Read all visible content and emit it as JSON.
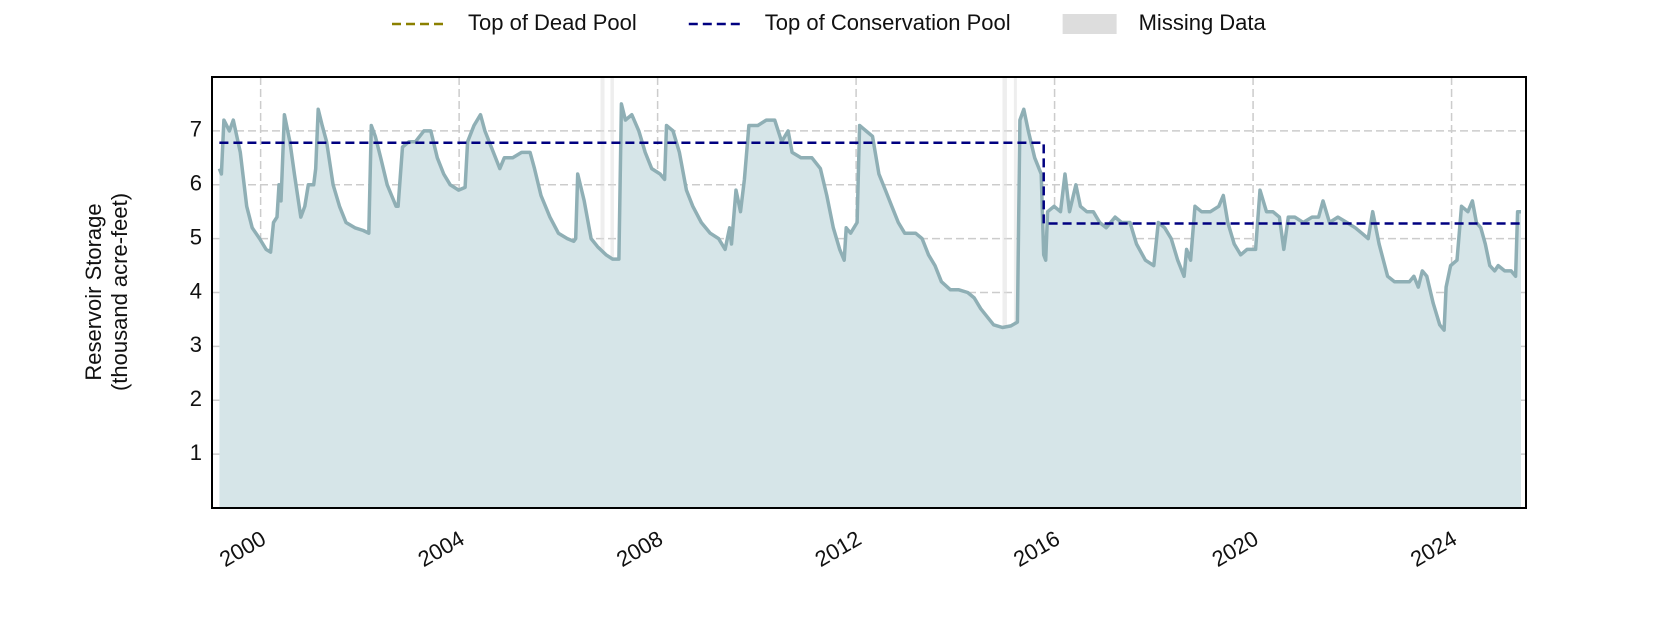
{
  "chart_data": {
    "type": "line",
    "y_label": "Reservoir Storage\n(thousand acre-feet)",
    "xlim": [
      1999.02,
      2025.5
    ],
    "ylim": [
      0,
      8
    ],
    "xticks": [
      2000,
      2004,
      2008,
      2012,
      2016,
      2020,
      2024
    ],
    "yticks": [
      1,
      2,
      3,
      4,
      5,
      6,
      7
    ],
    "grid": true,
    "legend": "top",
    "missing_data_label": "Missing Data",
    "missing_data_color": "#dddddd",
    "missing_data": [
      [
        2006.85,
        2006.93
      ],
      [
        2007.05,
        2007.12
      ],
      [
        2014.95,
        2015.04
      ],
      [
        2015.18,
        2015.24
      ]
    ],
    "series": [
      {
        "role": "storage",
        "color": "#8fafb5",
        "fill": "#d6e5e8",
        "x": [
          1999.17,
          1999.21,
          1999.26,
          1999.37,
          1999.45,
          1999.59,
          1999.72,
          1999.83,
          1999.98,
          2000.11,
          2000.2,
          2000.26,
          2000.33,
          2000.37,
          2000.41,
          2000.48,
          2000.59,
          2000.68,
          2000.81,
          2000.89,
          2000.96,
          2001.07,
          2001.11,
          2001.16,
          2001.24,
          2001.33,
          2001.46,
          2001.59,
          2001.72,
          2001.9,
          2002.07,
          2002.18,
          2002.23,
          2002.31,
          2002.42,
          2002.55,
          2002.64,
          2002.73,
          2002.77,
          2002.86,
          2002.99,
          2003.12,
          2003.29,
          2003.43,
          2003.56,
          2003.69,
          2003.82,
          2003.99,
          2004.12,
          2004.17,
          2004.3,
          2004.43,
          2004.52,
          2004.69,
          2004.82,
          2004.91,
          2005.08,
          2005.26,
          2005.43,
          2005.52,
          2005.65,
          2005.83,
          2006.0,
          2006.18,
          2006.31,
          2006.35,
          2006.39,
          2006.52,
          2006.66,
          2006.79,
          2006.96,
          2007.09,
          2007.22,
          2007.27,
          2007.35,
          2007.48,
          2007.62,
          2007.75,
          2007.88,
          2008.05,
          2008.14,
          2008.18,
          2008.31,
          2008.44,
          2008.58,
          2008.71,
          2008.88,
          2009.06,
          2009.23,
          2009.36,
          2009.45,
          2009.49,
          2009.58,
          2009.67,
          2009.75,
          2009.84,
          2010.02,
          2010.19,
          2010.36,
          2010.5,
          2010.63,
          2010.71,
          2010.89,
          2011.11,
          2011.28,
          2011.41,
          2011.54,
          2011.67,
          2011.76,
          2011.8,
          2011.89,
          2012.02,
          2012.07,
          2012.2,
          2012.33,
          2012.46,
          2012.59,
          2012.72,
          2012.85,
          2012.98,
          2013.2,
          2013.33,
          2013.46,
          2013.59,
          2013.72,
          2013.9,
          2014.07,
          2014.25,
          2014.38,
          2014.51,
          2014.64,
          2014.77,
          2014.95,
          2015.12,
          2015.25,
          2015.3,
          2015.38,
          2015.47,
          2015.6,
          2015.73,
          2015.78,
          2015.82,
          2015.86,
          2015.99,
          2016.12,
          2016.21,
          2016.3,
          2016.43,
          2016.52,
          2016.65,
          2016.78,
          2016.91,
          2017.04,
          2017.22,
          2017.35,
          2017.52,
          2017.65,
          2017.83,
          2018.0,
          2018.09,
          2018.22,
          2018.35,
          2018.48,
          2018.61,
          2018.66,
          2018.74,
          2018.83,
          2018.96,
          2019.14,
          2019.31,
          2019.4,
          2019.49,
          2019.62,
          2019.75,
          2019.88,
          2020.05,
          2020.14,
          2020.27,
          2020.4,
          2020.53,
          2020.62,
          2020.71,
          2020.84,
          2021.01,
          2021.19,
          2021.32,
          2021.41,
          2021.54,
          2021.71,
          2021.89,
          2022.06,
          2022.19,
          2022.32,
          2022.41,
          2022.54,
          2022.71,
          2022.85,
          2023.02,
          2023.15,
          2023.24,
          2023.33,
          2023.41,
          2023.5,
          2023.63,
          2023.76,
          2023.85,
          2023.89,
          2023.98,
          2024.11,
          2024.2,
          2024.33,
          2024.42,
          2024.5,
          2024.59,
          2024.68,
          2024.77,
          2024.87,
          2024.94,
          2025.07,
          2025.2,
          2025.29,
          2025.33,
          2025.4
        ],
        "values": [
          6.3,
          6.2,
          7.2,
          7.0,
          7.2,
          6.6,
          5.6,
          5.2,
          5.0,
          4.8,
          4.75,
          5.3,
          5.4,
          6.0,
          5.7,
          7.3,
          6.8,
          6.2,
          5.4,
          5.6,
          6.0,
          6.0,
          6.3,
          7.4,
          7.1,
          6.8,
          6.0,
          5.6,
          5.3,
          5.2,
          5.15,
          5.1,
          7.1,
          6.9,
          6.5,
          6.0,
          5.8,
          5.6,
          5.6,
          6.7,
          6.8,
          6.8,
          7.0,
          7.0,
          6.5,
          6.2,
          6.0,
          5.9,
          5.95,
          6.8,
          7.1,
          7.3,
          7.0,
          6.6,
          6.3,
          6.5,
          6.5,
          6.6,
          6.6,
          6.3,
          5.8,
          5.4,
          5.1,
          5.0,
          4.95,
          5.0,
          6.2,
          5.7,
          5.0,
          4.85,
          4.7,
          4.62,
          4.62,
          7.5,
          7.2,
          7.3,
          7.0,
          6.6,
          6.3,
          6.2,
          6.1,
          7.1,
          7.0,
          6.6,
          5.9,
          5.6,
          5.3,
          5.1,
          5.0,
          4.8,
          5.2,
          4.9,
          5.9,
          5.5,
          6.1,
          7.1,
          7.1,
          7.2,
          7.2,
          6.8,
          7.0,
          6.6,
          6.5,
          6.5,
          6.3,
          5.8,
          5.2,
          4.8,
          4.6,
          5.2,
          5.1,
          5.3,
          7.1,
          7.0,
          6.9,
          6.2,
          5.9,
          5.6,
          5.3,
          5.1,
          5.1,
          5.0,
          4.7,
          4.5,
          4.2,
          4.05,
          4.05,
          4.0,
          3.9,
          3.7,
          3.55,
          3.4,
          3.35,
          3.38,
          3.45,
          7.2,
          7.4,
          7.0,
          6.5,
          6.2,
          4.7,
          4.6,
          5.5,
          5.6,
          5.5,
          6.2,
          5.5,
          6.0,
          5.6,
          5.5,
          5.5,
          5.3,
          5.2,
          5.4,
          5.3,
          5.3,
          4.9,
          4.6,
          4.5,
          5.3,
          5.2,
          5.0,
          4.6,
          4.3,
          4.8,
          4.6,
          5.6,
          5.5,
          5.5,
          5.6,
          5.8,
          5.3,
          4.9,
          4.7,
          4.8,
          4.8,
          5.9,
          5.5,
          5.5,
          5.4,
          4.8,
          5.4,
          5.4,
          5.3,
          5.4,
          5.4,
          5.7,
          5.3,
          5.4,
          5.3,
          5.2,
          5.1,
          5.0,
          5.5,
          4.9,
          4.3,
          4.2,
          4.2,
          4.2,
          4.3,
          4.1,
          4.4,
          4.3,
          3.8,
          3.4,
          3.3,
          4.1,
          4.5,
          4.6,
          5.6,
          5.5,
          5.7,
          5.3,
          5.2,
          4.9,
          4.5,
          4.4,
          4.5,
          4.4,
          4.4,
          4.3,
          5.5,
          5.5
        ]
      },
      {
        "name": "Top of Dead Pool",
        "color": "#8b8000",
        "dashed": true,
        "x": [],
        "values": []
      },
      {
        "name": "Top of Conservation Pool",
        "color": "#000080",
        "dashed": true,
        "x": [
          1999.17,
          2015.78,
          2015.78,
          2025.4
        ],
        "values": [
          6.78,
          6.78,
          5.28,
          5.28
        ]
      }
    ]
  }
}
